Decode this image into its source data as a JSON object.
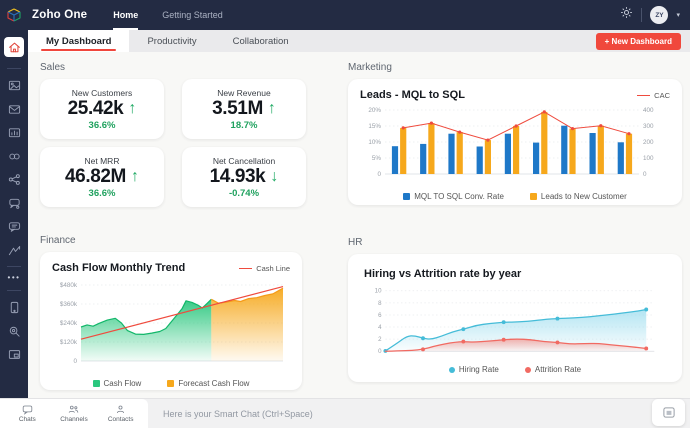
{
  "topbar": {
    "brand": "Zoho One",
    "nav": [
      {
        "label": "Home",
        "active": true
      },
      {
        "label": "Getting Started",
        "active": false
      }
    ],
    "avatar_text": "ZY"
  },
  "tabbar": {
    "tabs": [
      {
        "label": "My Dashboard",
        "active": true
      },
      {
        "label": "Productivity",
        "active": false
      },
      {
        "label": "Collaboration",
        "active": false
      }
    ],
    "new_dashboard": "+ New Dashboard"
  },
  "sidebar": {
    "icons": [
      "home",
      "gallery",
      "mail",
      "reports",
      "links",
      "share",
      "chat-user",
      "comments",
      "analytics",
      "more",
      "mobile",
      "search-settings",
      "window"
    ]
  },
  "sales": {
    "label": "Sales",
    "cards": [
      {
        "title": "New Customers",
        "value": "25.42k",
        "arrow": "↑",
        "delta": "36.6%"
      },
      {
        "title": "New Revenue",
        "value": "3.51M",
        "arrow": "↑",
        "delta": "18.7%"
      },
      {
        "title": "Net MRR",
        "value": "46.82M",
        "arrow": "↑",
        "delta": "36.6%"
      },
      {
        "title": "Net Cancellation",
        "value": "14.93k",
        "arrow": "↓",
        "delta": "-0.74%"
      }
    ]
  },
  "marketing": {
    "label": "Marketing"
  },
  "finance": {
    "label": "Finance"
  },
  "hr": {
    "label": "HR"
  },
  "bottombar": {
    "items": [
      {
        "label": "Chats"
      },
      {
        "label": "Channels"
      },
      {
        "label": "Contacts"
      }
    ],
    "chat_placeholder": "Here is your Smart Chat (Ctrl+Space)"
  },
  "colors": {
    "navy": "#232b43",
    "red_accent": "#f0483c",
    "green_text": "#1fa15e",
    "bar_blue": "#1e78c8",
    "bar_yellow": "#f6a81c",
    "line_red": "#ef4b3e",
    "finance_green": "#2bc77e",
    "finance_orange": "#f6a81c",
    "hr_blue": "#45bcd8",
    "hr_red": "#f16a62"
  },
  "chart_data": [
    {
      "id": "marketing",
      "type": "bar",
      "title": "Leads - MQL to SQL",
      "left_axis": {
        "max": 20,
        "ticks": [
          "0",
          "5%",
          "10%",
          "15%",
          "20%"
        ]
      },
      "right_axis": {
        "max": 400,
        "ticks": [
          "0",
          "100",
          "200",
          "300",
          "400"
        ]
      },
      "legend_position": "bottom",
      "series": [
        {
          "name": "MQL TO SQL Conv. Rate",
          "type": "bar",
          "axis": "left",
          "values": [
            8.7,
            9.4,
            12.6,
            8.6,
            12.6,
            9.8,
            15.1,
            12.8,
            9.9
          ]
        },
        {
          "name": "Leads to New Customer",
          "type": "bar",
          "axis": "right",
          "values": [
            288,
            318,
            262,
            212,
            300,
            388,
            284,
            302,
            252
          ]
        },
        {
          "name": "CAC",
          "type": "line",
          "axis": "right",
          "values": [
            288,
            318,
            262,
            212,
            300,
            388,
            284,
            302,
            252
          ]
        }
      ]
    },
    {
      "id": "finance",
      "type": "area",
      "title": "Cash Flow Monthly Trend",
      "y_axis": {
        "max": 480,
        "ticks": [
          "0",
          "$120k",
          "$240k",
          "$360k",
          "$480k"
        ]
      },
      "legend_position": "bottom",
      "series": [
        {
          "name": "Cash Flow",
          "type": "area",
          "points": [
            [
              0,
              215
            ],
            [
              0.03,
              228
            ],
            [
              0.06,
              220
            ],
            [
              0.09,
              238
            ],
            [
              0.13,
              258
            ],
            [
              0.17,
              270
            ],
            [
              0.2,
              240
            ],
            [
              0.23,
              192
            ],
            [
              0.27,
              170
            ],
            [
              0.31,
              168
            ],
            [
              0.35,
              176
            ],
            [
              0.39,
              186
            ],
            [
              0.42,
              205
            ],
            [
              0.46,
              268
            ],
            [
              0.5,
              330
            ],
            [
              0.52,
              380
            ],
            [
              0.55,
              370
            ],
            [
              0.58,
              352
            ],
            [
              0.6,
              335
            ],
            [
              0.62,
              358
            ],
            [
              0.645,
              390
            ]
          ]
        },
        {
          "name": "Forecast Cash Flow",
          "type": "area",
          "points": [
            [
              0.645,
              390
            ],
            [
              0.68,
              366
            ],
            [
              0.72,
              372
            ],
            [
              0.76,
              382
            ],
            [
              0.79,
              376
            ],
            [
              0.83,
              394
            ],
            [
              0.87,
              400
            ],
            [
              0.91,
              414
            ],
            [
              0.95,
              424
            ],
            [
              1,
              460
            ]
          ]
        },
        {
          "name": "Cash Line",
          "type": "line",
          "points": [
            [
              0,
              138
            ],
            [
              1,
              470
            ]
          ]
        }
      ]
    },
    {
      "id": "hr",
      "type": "line",
      "title": "Hiring vs Attrition rate by year",
      "y_axis": {
        "max": 10,
        "ticks": [
          "0",
          "2",
          "4",
          "6",
          "8",
          "10"
        ]
      },
      "legend_position": "bottom",
      "series": [
        {
          "name": "Hiring Rate",
          "points": [
            [
              0,
              0.05
            ],
            [
              0.04,
              1.2
            ],
            [
              0.08,
              2.5
            ],
            [
              0.11,
              2.55
            ],
            [
              0.14,
              2.15
            ],
            [
              0.17,
              1.95
            ],
            [
              0.21,
              2.5
            ],
            [
              0.25,
              3.2
            ],
            [
              0.29,
              3.65
            ],
            [
              0.34,
              4.3
            ],
            [
              0.39,
              4.6
            ],
            [
              0.44,
              4.8
            ],
            [
              0.5,
              4.85
            ],
            [
              0.56,
              5.1
            ],
            [
              0.6,
              5.3
            ],
            [
              0.64,
              5.4
            ],
            [
              0.7,
              5.5
            ],
            [
              0.76,
              5.7
            ],
            [
              0.82,
              6.0
            ],
            [
              0.88,
              6.3
            ],
            [
              0.93,
              6.6
            ],
            [
              0.97,
              6.9
            ]
          ],
          "markers": [
            0,
            4,
            8,
            11,
            15,
            21
          ]
        },
        {
          "name": "Attrition Rate",
          "points": [
            [
              0,
              0.0
            ],
            [
              0.05,
              0.05
            ],
            [
              0.1,
              0.15
            ],
            [
              0.14,
              0.3
            ],
            [
              0.18,
              0.8
            ],
            [
              0.22,
              1.2
            ],
            [
              0.26,
              1.5
            ],
            [
              0.29,
              1.6
            ],
            [
              0.33,
              1.5
            ],
            [
              0.38,
              1.65
            ],
            [
              0.44,
              1.9
            ],
            [
              0.49,
              2.05
            ],
            [
              0.54,
              1.9
            ],
            [
              0.59,
              1.6
            ],
            [
              0.64,
              1.45
            ],
            [
              0.69,
              1.2
            ],
            [
              0.74,
              1.25
            ],
            [
              0.79,
              1.3
            ],
            [
              0.84,
              1.05
            ],
            [
              0.9,
              0.8
            ],
            [
              0.97,
              0.45
            ]
          ],
          "markers": [
            3,
            7,
            10,
            14,
            20
          ]
        }
      ]
    }
  ]
}
